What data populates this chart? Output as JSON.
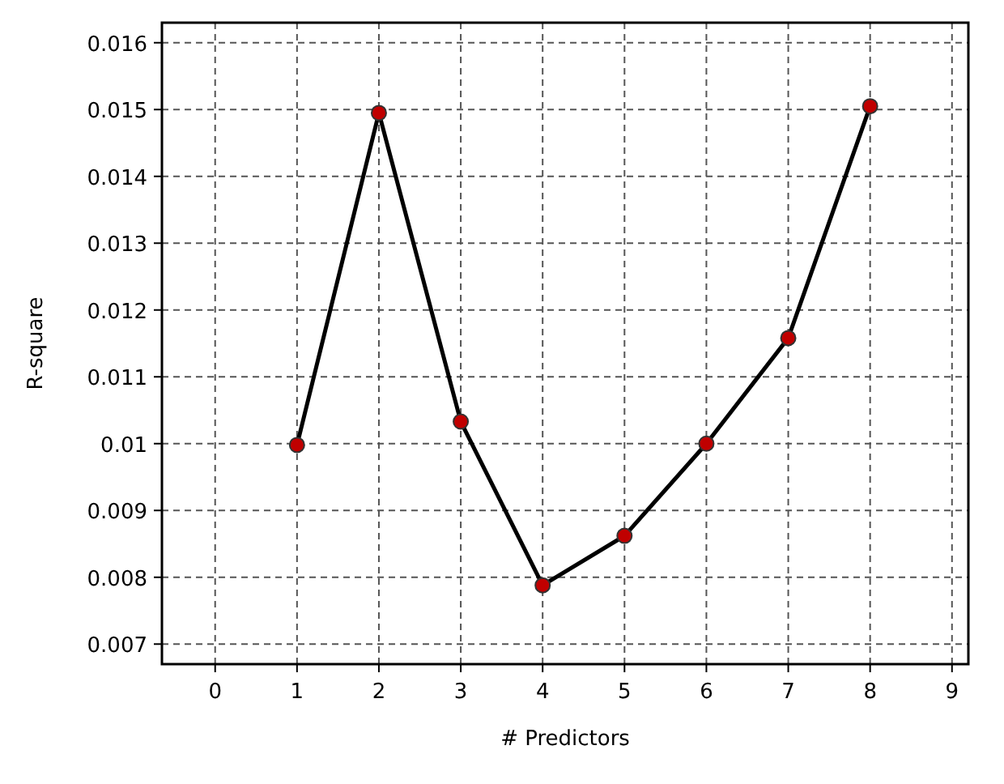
{
  "chart_data": {
    "type": "line",
    "xlabel": "# Predictors",
    "ylabel": "R-square",
    "x": [
      1,
      2,
      3,
      4,
      5,
      6,
      7,
      8
    ],
    "series": [
      {
        "color": "#000000",
        "values": [
          0.00998,
          0.01495,
          0.01033,
          0.00788,
          0.00862,
          0.01,
          0.01158,
          0.01505
        ]
      }
    ],
    "marker": "circle",
    "line_style": "solid",
    "grid": true,
    "xlim": [
      -0.65,
      9.2
    ],
    "xticks": [
      0,
      1,
      2,
      3,
      4,
      5,
      6,
      7,
      8,
      9
    ],
    "ylim": [
      0.0067,
      0.0163
    ],
    "yticks": [
      0.007,
      0.008,
      0.009,
      0.01,
      0.011,
      0.012,
      0.013,
      0.014,
      0.015,
      0.016
    ]
  }
}
